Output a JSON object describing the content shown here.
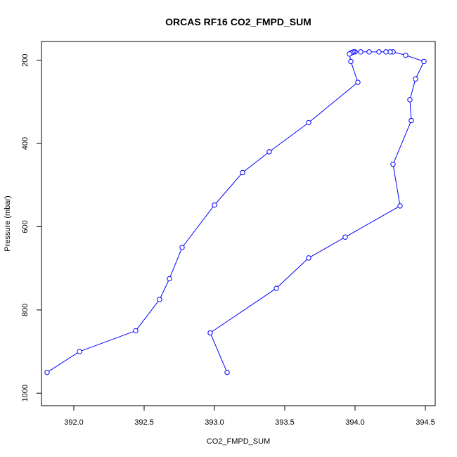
{
  "chart_data": {
    "type": "line",
    "title": "ORCAS RF16 CO2_FMPD_SUM",
    "xlabel": "CO2_FMPD_SUM",
    "ylabel": "Pressure (mbar)",
    "xlim": [
      391.77,
      394.57
    ],
    "ylim": [
      1030,
      155
    ],
    "y_reversed": true,
    "x_ticks": [
      392.0,
      392.5,
      393.0,
      393.5,
      394.0,
      394.5
    ],
    "x_tick_labels": [
      "392.0",
      "392.5",
      "393.0",
      "393.5",
      "394.0",
      "394.5"
    ],
    "y_ticks": [
      200,
      400,
      600,
      800,
      1000
    ],
    "y_tick_labels": [
      "200",
      "400",
      "600",
      "800",
      "1000"
    ],
    "grid": false,
    "series": [
      {
        "color": "#0000ff",
        "points": [
          {
            "x": 393.09,
            "y": 950
          },
          {
            "x": 392.97,
            "y": 855
          },
          {
            "x": 393.44,
            "y": 748
          },
          {
            "x": 393.67,
            "y": 675
          },
          {
            "x": 393.93,
            "y": 625
          },
          {
            "x": 394.32,
            "y": 550
          },
          {
            "x": 394.27,
            "y": 450
          },
          {
            "x": 394.4,
            "y": 345
          },
          {
            "x": 394.39,
            "y": 295
          },
          {
            "x": 394.43,
            "y": 245
          },
          {
            "x": 394.49,
            "y": 203
          },
          {
            "x": 394.36,
            "y": 188
          },
          {
            "x": 394.27,
            "y": 180
          },
          {
            "x": 394.25,
            "y": 180
          },
          {
            "x": 394.22,
            "y": 180
          },
          {
            "x": 394.17,
            "y": 180
          },
          {
            "x": 394.1,
            "y": 180
          },
          {
            "x": 394.04,
            "y": 180
          },
          {
            "x": 394.0,
            "y": 180
          },
          {
            "x": 393.99,
            "y": 180
          },
          {
            "x": 393.98,
            "y": 181
          },
          {
            "x": 393.97,
            "y": 183
          },
          {
            "x": 393.96,
            "y": 185
          },
          {
            "x": 393.97,
            "y": 203
          },
          {
            "x": 394.02,
            "y": 253
          },
          {
            "x": 393.67,
            "y": 350
          },
          {
            "x": 393.39,
            "y": 420
          },
          {
            "x": 393.2,
            "y": 470
          },
          {
            "x": 393.0,
            "y": 548
          },
          {
            "x": 392.77,
            "y": 650
          },
          {
            "x": 392.68,
            "y": 725
          },
          {
            "x": 392.61,
            "y": 775
          },
          {
            "x": 392.44,
            "y": 850
          },
          {
            "x": 392.04,
            "y": 900
          },
          {
            "x": 391.81,
            "y": 950
          }
        ]
      }
    ]
  }
}
